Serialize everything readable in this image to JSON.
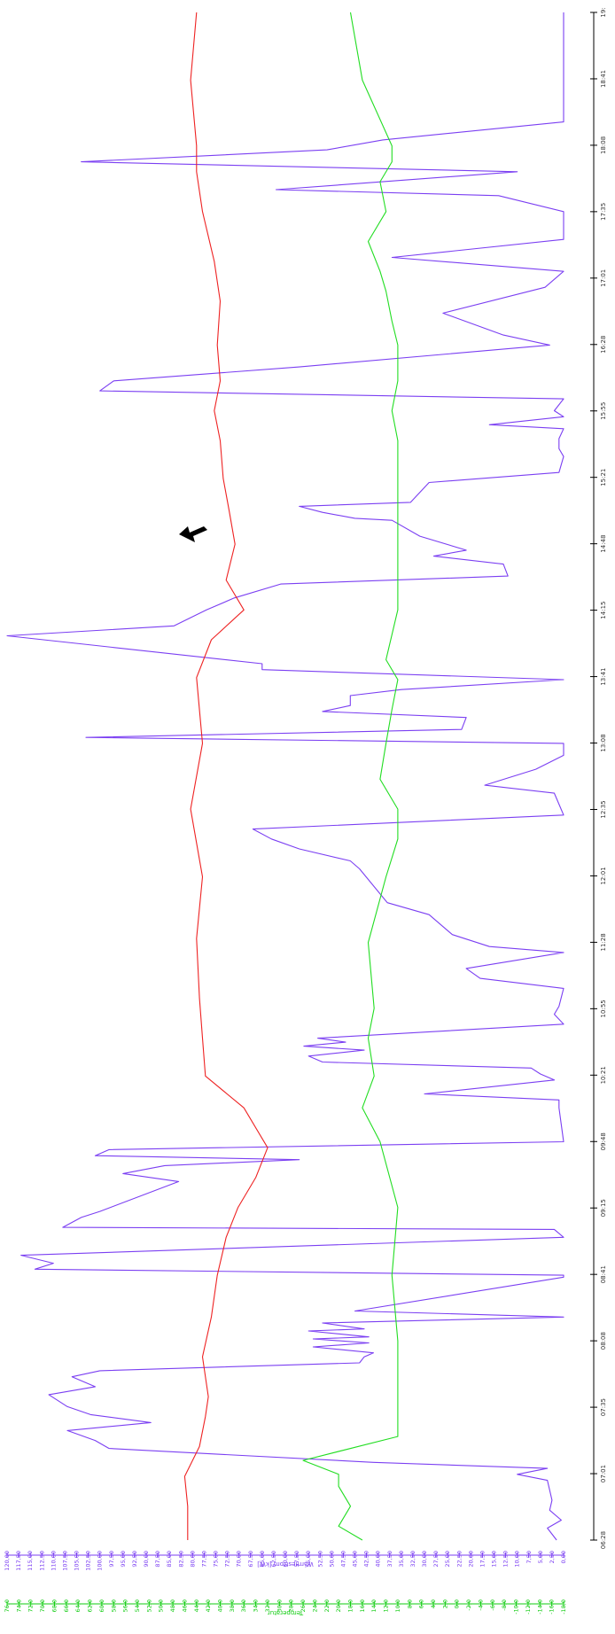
{
  "chart_data": {
    "type": "line",
    "orientation": "rotated-90-clockwise",
    "x": {
      "ticks": [
        "06:28",
        "07:01",
        "07:35",
        "08:08",
        "08:41",
        "09:15",
        "09:48",
        "10:21",
        "10:55",
        "11:28",
        "12:01",
        "12:35",
        "13:08",
        "13:41",
        "14:15",
        "14:48",
        "15:21",
        "15:55",
        "16:28",
        "17:01",
        "17:35",
        "18:08",
        "18:41",
        "19:"
      ],
      "range": [
        "06:28",
        "19:15"
      ]
    },
    "axes": [
      {
        "id": "power",
        "label": "Wärmestrom [kW]",
        "color": "#7b3ff2",
        "range": [
          0,
          120
        ],
        "ticks": [
          "0,00",
          "2,50",
          "5,00",
          "7,50",
          "10,00",
          "12,50",
          "15,00",
          "17,50",
          "20,00",
          "22,50",
          "25,00",
          "27,50",
          "30,00",
          "32,50",
          "35,00",
          "37,50",
          "40,00",
          "42,50",
          "45,00",
          "47,50",
          "50,00",
          "52,50",
          "55,00",
          "57,50",
          "60,00",
          "62,50",
          "65,00",
          "67,50",
          "70,00",
          "72,50",
          "75,00",
          "77,50",
          "80,00",
          "82,50",
          "85,00",
          "87,50",
          "90,00",
          "92,50",
          "95,00",
          "97,50",
          "100,00",
          "102,50",
          "105,00",
          "107,50",
          "110,00",
          "112,50",
          "115,00",
          "117,50",
          "120,00"
        ]
      },
      {
        "id": "temp",
        "label": "Temperatur",
        "color": "#11cc11",
        "range": [
          -18,
          76
        ],
        "ticks": [
          "-18,0",
          "-16,0",
          "-14,0",
          "-12,0",
          "-10,0",
          "-8,0",
          "-6,0",
          "-4,0",
          "-2,0",
          "0,0",
          "2,0",
          "4,0",
          "6,0",
          "8,0",
          "10,0",
          "12,0",
          "14,0",
          "16,0",
          "18,0",
          "20,0",
          "22,0",
          "24,0",
          "26,0",
          "28,0",
          "30,0",
          "32,0",
          "34,0",
          "36,0",
          "38,0",
          "40,0",
          "42,0",
          "44,0",
          "46,0",
          "48,0",
          "50,0",
          "52,0",
          "54,0",
          "56,0",
          "58,0",
          "60,0",
          "62,0",
          "64,0",
          "66,0",
          "68,0",
          "70,0",
          "72,0",
          "74,0",
          "76,0"
        ]
      }
    ],
    "series": [
      {
        "axis": "power",
        "color": "#7b3ff2",
        "points": [
          [
            "06:28",
            1.5
          ],
          [
            "06:34",
            3.5
          ],
          [
            "06:38",
            0.5
          ],
          [
            "06:43",
            3
          ],
          [
            "06:48",
            2.5
          ],
          [
            "06:53",
            3
          ],
          [
            "06:58",
            3.5
          ],
          [
            "07:01",
            10
          ],
          [
            "07:04",
            3.5
          ],
          [
            "07:07",
            41
          ],
          [
            "07:14",
            98
          ],
          [
            "07:18",
            101
          ],
          [
            "07:23",
            107
          ],
          [
            "07:27",
            89
          ],
          [
            "07:31",
            102
          ],
          [
            "07:35",
            107
          ],
          [
            "07:41",
            111
          ],
          [
            "07:45",
            101
          ],
          [
            "07:50",
            106
          ],
          [
            "07:53",
            100
          ],
          [
            "07:57",
            44
          ],
          [
            "08:00",
            43
          ],
          [
            "08:02",
            41
          ],
          [
            "08:05",
            54
          ],
          [
            "08:07",
            42
          ],
          [
            "08:09",
            54
          ],
          [
            "08:10",
            42
          ],
          [
            "08:13",
            55
          ],
          [
            "08:14",
            43
          ],
          [
            "08:17",
            52
          ],
          [
            "08:20",
            0
          ],
          [
            "08:23",
            45
          ],
          [
            "08:40",
            0
          ],
          [
            "08:41",
            0
          ],
          [
            "08:44",
            114
          ],
          [
            "08:47",
            110
          ],
          [
            "08:51",
            117
          ],
          [
            "09:00",
            0
          ],
          [
            "09:04",
            2
          ],
          [
            "09:05",
            108
          ],
          [
            "09:10",
            104
          ],
          [
            "09:13",
            100
          ],
          [
            "09:28",
            83
          ],
          [
            "09:32",
            95
          ],
          [
            "09:36",
            86
          ],
          [
            "09:39",
            57
          ],
          [
            "09:41",
            101
          ],
          [
            "09:44",
            98
          ],
          [
            "09:48",
            0
          ],
          [
            "10:05",
            1
          ],
          [
            "10:09",
            1
          ],
          [
            "10:12",
            30
          ],
          [
            "10:19",
            2
          ],
          [
            "10:22",
            5
          ],
          [
            "10:25",
            7
          ],
          [
            "10:28",
            52
          ],
          [
            "10:31",
            55
          ],
          [
            "10:34",
            43
          ],
          [
            "10:36",
            56
          ],
          [
            "10:38",
            47
          ],
          [
            "10:40",
            53
          ],
          [
            "10:47",
            0
          ],
          [
            "10:52",
            2
          ],
          [
            "10:56",
            1
          ],
          [
            "11:05",
            0
          ],
          [
            "11:10",
            18
          ],
          [
            "11:15",
            21
          ],
          [
            "11:23",
            0
          ],
          [
            "11:26",
            16
          ],
          [
            "11:32",
            24
          ],
          [
            "11:42",
            29
          ],
          [
            "11:48",
            38
          ],
          [
            "12:05",
            44
          ],
          [
            "12:09",
            46
          ],
          [
            "12:15",
            57
          ],
          [
            "12:20",
            63
          ],
          [
            "12:25",
            67
          ],
          [
            "12:32",
            0
          ],
          [
            "12:43",
            2
          ],
          [
            "12:47",
            17
          ],
          [
            "12:55",
            6
          ],
          [
            "13:02",
            0
          ],
          [
            "13:08",
            0
          ],
          [
            "13:11",
            103
          ],
          [
            "13:15",
            22
          ],
          [
            "13:21",
            21
          ],
          [
            "13:24",
            52
          ],
          [
            "13:27",
            46
          ],
          [
            "13:32",
            46
          ],
          [
            "13:35",
            35
          ],
          [
            "13:40",
            0
          ],
          [
            "13:45",
            65
          ],
          [
            "13:48",
            65
          ],
          [
            "14:02",
            120
          ],
          [
            "14:07",
            84
          ],
          [
            "14:15",
            77
          ],
          [
            "14:21",
            71
          ],
          [
            "14:28",
            61
          ],
          [
            "14:32",
            12
          ],
          [
            "14:38",
            13
          ],
          [
            "14:42",
            28
          ],
          [
            "14:45",
            21
          ],
          [
            "14:52",
            31
          ],
          [
            "15:00",
            37
          ],
          [
            "15:01",
            45
          ],
          [
            "15:04",
            52
          ],
          [
            "15:07",
            57
          ],
          [
            "15:09",
            33
          ],
          [
            "15:19",
            29
          ],
          [
            "15:24",
            1
          ],
          [
            "15:32",
            0
          ],
          [
            "15:36",
            1
          ],
          [
            "15:41",
            1
          ],
          [
            "15:46",
            0
          ],
          [
            "15:48",
            16
          ],
          [
            "15:52",
            0
          ],
          [
            "15:55",
            2
          ],
          [
            "16:01",
            0
          ],
          [
            "16:05",
            100
          ],
          [
            "16:10",
            97
          ],
          [
            "16:17",
            57
          ],
          [
            "16:28",
            3
          ],
          [
            "16:33",
            13
          ],
          [
            "16:44",
            26
          ],
          [
            "16:57",
            4
          ],
          [
            "17:05",
            0
          ],
          [
            "17:12",
            37
          ],
          [
            "17:21",
            0
          ],
          [
            "17:35",
            0
          ],
          [
            "17:43",
            14
          ],
          [
            "17:46",
            62
          ],
          [
            "17:55",
            10
          ],
          [
            "18:00",
            104
          ],
          [
            "18:06",
            51
          ],
          [
            "18:11",
            39
          ],
          [
            "18:20",
            0
          ],
          [
            "19:15",
            0
          ]
        ]
      },
      {
        "axis": "temp",
        "color": "#ee2222",
        "points": [
          [
            "06:28",
            45.5
          ],
          [
            "06:45",
            45.5
          ],
          [
            "07:00",
            46
          ],
          [
            "07:15",
            43.5
          ],
          [
            "07:30",
            42.5
          ],
          [
            "07:40",
            42
          ],
          [
            "08:00",
            43
          ],
          [
            "08:20",
            41.5
          ],
          [
            "08:41",
            40.5
          ],
          [
            "09:00",
            39
          ],
          [
            "09:15",
            37
          ],
          [
            "09:30",
            34
          ],
          [
            "09:45",
            32
          ],
          [
            "10:05",
            36
          ],
          [
            "10:21",
            42.5
          ],
          [
            "10:40",
            43
          ],
          [
            "11:00",
            43.5
          ],
          [
            "11:30",
            44
          ],
          [
            "12:01",
            43
          ],
          [
            "12:35",
            45
          ],
          [
            "13:08",
            43
          ],
          [
            "13:41",
            44
          ],
          [
            "14:00",
            41.5
          ],
          [
            "14:15",
            36
          ],
          [
            "14:30",
            39
          ],
          [
            "14:48",
            37.5
          ],
          [
            "15:05",
            38.5
          ],
          [
            "15:21",
            39.5
          ],
          [
            "15:40",
            40
          ],
          [
            "15:55",
            41
          ],
          [
            "16:10",
            40
          ],
          [
            "16:28",
            40.5
          ],
          [
            "16:50",
            40
          ],
          [
            "17:10",
            41
          ],
          [
            "17:35",
            43
          ],
          [
            "17:55",
            44
          ],
          [
            "18:08",
            44
          ],
          [
            "18:41",
            45
          ],
          [
            "19:15",
            44
          ]
        ]
      },
      {
        "axis": "temp",
        "color": "#22dd22",
        "points": [
          [
            "06:28",
            16
          ],
          [
            "06:35",
            20
          ],
          [
            "06:45",
            18
          ],
          [
            "06:55",
            20
          ],
          [
            "07:01",
            20
          ],
          [
            "07:08",
            26
          ],
          [
            "07:20",
            10
          ],
          [
            "07:35",
            10
          ],
          [
            "08:08",
            10
          ],
          [
            "08:41",
            11
          ],
          [
            "09:15",
            10
          ],
          [
            "09:48",
            13
          ],
          [
            "10:05",
            16
          ],
          [
            "10:21",
            14
          ],
          [
            "10:40",
            15
          ],
          [
            "10:55",
            14
          ],
          [
            "11:28",
            15
          ],
          [
            "12:01",
            12
          ],
          [
            "12:20",
            10
          ],
          [
            "12:35",
            10
          ],
          [
            "12:50",
            13
          ],
          [
            "13:08",
            12
          ],
          [
            "13:25",
            11
          ],
          [
            "13:40",
            10
          ],
          [
            "13:50",
            12
          ],
          [
            "14:15",
            10
          ],
          [
            "14:48",
            10
          ],
          [
            "15:21",
            10
          ],
          [
            "15:40",
            10
          ],
          [
            "15:55",
            11
          ],
          [
            "16:10",
            10
          ],
          [
            "16:28",
            10
          ],
          [
            "16:40",
            11
          ],
          [
            "16:55",
            12
          ],
          [
            "17:05",
            13
          ],
          [
            "17:20",
            15
          ],
          [
            "17:35",
            12
          ],
          [
            "17:50",
            13
          ],
          [
            "18:00",
            11
          ],
          [
            "18:08",
            11
          ],
          [
            "18:41",
            16
          ],
          [
            "19:15",
            18
          ]
        ]
      }
    ]
  }
}
